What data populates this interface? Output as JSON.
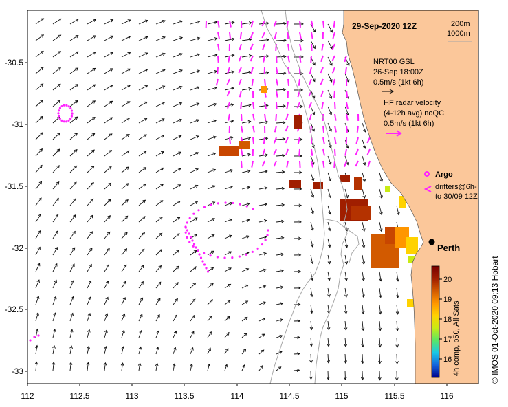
{
  "title": "29-Sep-2020 12Z",
  "credit": "©  IMOS 01-Oct-2020 09:13 Hobart",
  "isobaths": [
    "200m",
    "1000m"
  ],
  "place": "Perth",
  "legend": {
    "gsl": {
      "line1": "NRT00 GSL",
      "line2": "26-Sep 18:00Z",
      "line3": "0.5m/s (1kt 6h)"
    },
    "radar": {
      "line1": "HF radar velocity",
      "line2": "(4-12h avg) noQC",
      "line3": "0.5m/s (1kt 6h)"
    },
    "argo": "Argo",
    "drifters": {
      "line1": "drifters@6h-",
      "line2": "to 30/09 12Z"
    }
  },
  "colorbar": {
    "label": "4h comp, p50, All Sats",
    "ticks": [
      "16",
      "17",
      "18",
      "19",
      "20"
    ],
    "colors": [
      "#00008b",
      "#1464dc",
      "#19c8e6",
      "#5ae664",
      "#c8eb14",
      "#ffd200",
      "#ff9600",
      "#d25a00",
      "#a01e00",
      "#780000"
    ]
  },
  "x_axis": {
    "ticks": [
      "112",
      "112.5",
      "113",
      "113.5",
      "114",
      "114.5",
      "115",
      "115.5",
      "116"
    ]
  },
  "y_axis": {
    "ticks": [
      "-30.5",
      "-31",
      "-31.5",
      "-32",
      "-32.5",
      "-33"
    ]
  },
  "colors": {
    "land": "#fbc79a",
    "drifter": "#ff22ff",
    "isobath": "#a6a6a6"
  }
}
